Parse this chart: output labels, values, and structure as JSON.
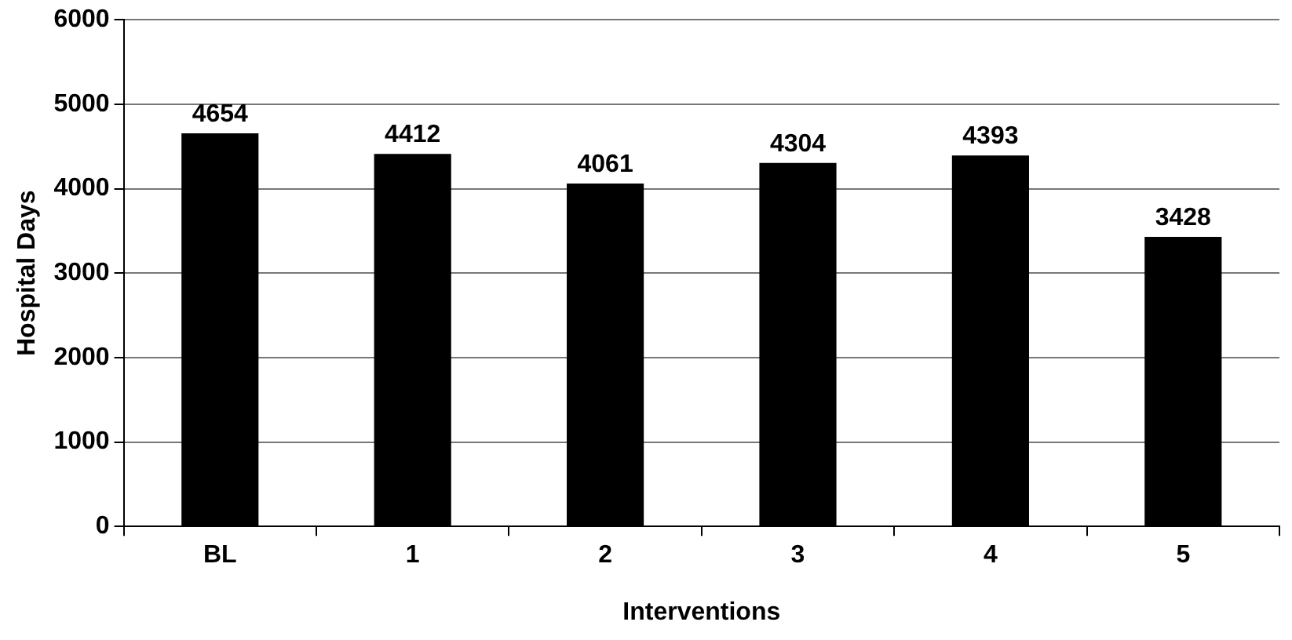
{
  "chart_data": {
    "type": "bar",
    "xlabel": "Interventions",
    "ylabel": "Hospital Days",
    "categories": [
      "BL",
      "1",
      "2",
      "3",
      "4",
      "5"
    ],
    "values": [
      4654,
      4412,
      4061,
      4304,
      4393,
      3428
    ],
    "color": "#000000",
    "ylim": [
      0,
      6000
    ],
    "yticks": [
      0,
      1000,
      2000,
      3000,
      4000,
      5000,
      6000
    ],
    "grid": "y",
    "data_labels": true,
    "legend": false
  }
}
